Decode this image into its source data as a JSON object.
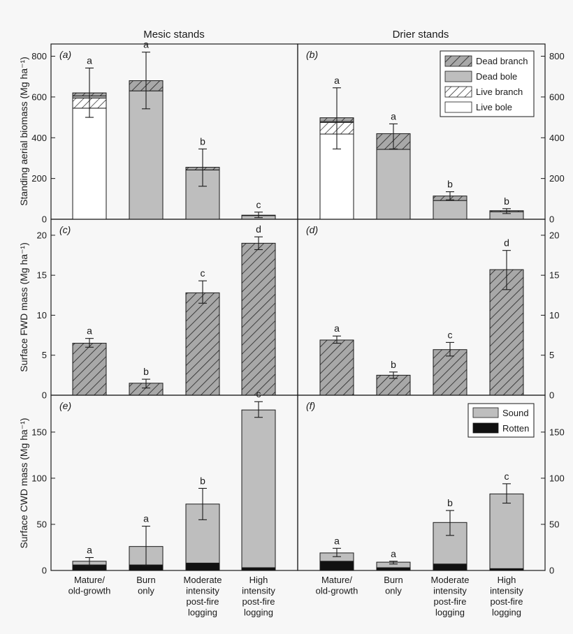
{
  "column_titles": [
    "Mesic stands",
    "Drier stands"
  ],
  "row_ylabels": [
    "Standing aerial biomass (Mg ha⁻¹)",
    "Surface FWD mass (Mg ha⁻¹)",
    "Surface CWD mass (Mg ha⁻¹)"
  ],
  "categories": [
    "Mature/\nold-growth",
    "Burn\nonly",
    "Moderate\nintensity\npost-fire\nlogging",
    "High\nintensity\npost-fire\nlogging"
  ],
  "colors": {
    "background": "#f7f7f7",
    "grey_fill": "#bebebe",
    "hatch_fill": "#a8a8a8",
    "black_fill": "#111111",
    "white_fill": "#ffffff",
    "ink": "#1a1a1a"
  },
  "legend_a": [
    "Dead branch",
    "Dead bole",
    "Live branch",
    "Live bole"
  ],
  "legend_e": [
    "Sound",
    "Rotten"
  ],
  "chart_data": [
    {
      "panel": "(a)",
      "type": "bar",
      "stacked": true,
      "column": "Mesic stands",
      "ylabel": "Standing aerial biomass (Mg ha⁻¹)",
      "ylim": [
        0,
        860
      ],
      "yticks": [
        0,
        200,
        400,
        600,
        800
      ],
      "categories": [
        "Mature/old-growth",
        "Burn only",
        "Moderate intensity post-fire logging",
        "High intensity post-fire logging"
      ],
      "series": [
        {
          "name": "Live bole",
          "values": [
            545,
            0,
            0,
            0
          ]
        },
        {
          "name": "Live branch",
          "values": [
            50,
            0,
            0,
            0
          ]
        },
        {
          "name": "Dead bole",
          "values": [
            10,
            630,
            242,
            18
          ]
        },
        {
          "name": "Dead branch",
          "values": [
            15,
            50,
            13,
            2
          ]
        }
      ],
      "error": [
        [
          500,
          742
        ],
        [
          542,
          820
        ],
        [
          162,
          345
        ],
        [
          8,
          35
        ]
      ],
      "letters": [
        "a",
        "a",
        "b",
        "c"
      ],
      "legend": "top-right",
      "legend_entries": [
        "Dead branch",
        "Dead bole",
        "Live branch",
        "Live bole"
      ]
    },
    {
      "panel": "(b)",
      "type": "bar",
      "stacked": true,
      "column": "Drier stands",
      "ylabel": "",
      "ylim": [
        0,
        860
      ],
      "yticks": [
        0,
        200,
        400,
        600,
        800
      ],
      "categories": [
        "Mature/old-growth",
        "Burn only",
        "Moderate intensity post-fire logging",
        "High intensity post-fire logging"
      ],
      "series": [
        {
          "name": "Live bole",
          "values": [
            418,
            0,
            0,
            0
          ]
        },
        {
          "name": "Live branch",
          "values": [
            57,
            0,
            0,
            0
          ]
        },
        {
          "name": "Dead bole",
          "values": [
            5,
            343,
            92,
            37
          ]
        },
        {
          "name": "Dead branch",
          "values": [
            18,
            77,
            22,
            5
          ]
        }
      ],
      "error": [
        [
          345,
          645
        ],
        [
          345,
          468
        ],
        [
          95,
          135
        ],
        [
          28,
          52
        ]
      ],
      "letters": [
        "a",
        "a",
        "b",
        "b"
      ]
    },
    {
      "panel": "(c)",
      "type": "bar",
      "column": "Mesic stands",
      "ylabel": "Surface FWD mass (Mg ha⁻¹)",
      "ylim": [
        0,
        22
      ],
      "yticks": [
        0,
        5,
        10,
        15,
        20
      ],
      "categories": [
        "Mature/old-growth",
        "Burn only",
        "Moderate intensity post-fire logging",
        "High intensity post-fire logging"
      ],
      "series": [
        {
          "values": [
            6.5,
            1.5,
            12.8,
            19.0
          ]
        }
      ],
      "error": [
        [
          6.0,
          7.1
        ],
        [
          0.9,
          2.0
        ],
        [
          11.5,
          14.3
        ],
        [
          18.2,
          19.8
        ]
      ],
      "letters": [
        "a",
        "b",
        "c",
        "d"
      ]
    },
    {
      "panel": "(d)",
      "type": "bar",
      "column": "Drier stands",
      "ylabel": "",
      "ylim": [
        0,
        22
      ],
      "yticks": [
        0,
        5,
        10,
        15,
        20
      ],
      "categories": [
        "Mature/old-growth",
        "Burn only",
        "Moderate intensity post-fire logging",
        "High intensity post-fire logging"
      ],
      "series": [
        {
          "values": [
            6.9,
            2.5,
            5.7,
            15.7
          ]
        }
      ],
      "error": [
        [
          6.5,
          7.4
        ],
        [
          2.1,
          2.9
        ],
        [
          4.9,
          6.6
        ],
        [
          13.2,
          18.1
        ]
      ],
      "letters": [
        "a",
        "b",
        "c",
        "d"
      ]
    },
    {
      "panel": "(e)",
      "type": "bar",
      "stacked": true,
      "column": "Mesic stands",
      "ylabel": "Surface CWD mass (Mg ha⁻¹)",
      "ylim": [
        0,
        190
      ],
      "yticks": [
        0,
        50,
        100,
        150
      ],
      "categories": [
        "Mature/old-growth",
        "Burn only",
        "Moderate intensity post-fire logging",
        "High intensity post-fire logging"
      ],
      "series": [
        {
          "name": "Rotten",
          "values": [
            6,
            6,
            8,
            3
          ]
        },
        {
          "name": "Sound",
          "values": [
            4,
            20,
            64,
            171
          ]
        }
      ],
      "error": [
        [
          5,
          14
        ],
        [
          5,
          48
        ],
        [
          55,
          89
        ],
        [
          166,
          183
        ]
      ],
      "letters": [
        "a",
        "a",
        "b",
        "c"
      ],
      "legend": "top-right",
      "legend_entries": [
        "Sound",
        "Rotten"
      ]
    },
    {
      "panel": "(f)",
      "type": "bar",
      "stacked": true,
      "column": "Drier stands",
      "ylabel": "",
      "ylim": [
        0,
        190
      ],
      "yticks": [
        0,
        50,
        100,
        150
      ],
      "categories": [
        "Mature/old-growth",
        "Burn only",
        "Moderate intensity post-fire logging",
        "High intensity post-fire logging"
      ],
      "series": [
        {
          "name": "Rotten",
          "values": [
            10,
            3,
            7,
            2
          ]
        },
        {
          "name": "Sound",
          "values": [
            9,
            6,
            45,
            81
          ]
        }
      ],
      "error": [
        [
          15,
          24
        ],
        [
          7,
          10
        ],
        [
          38,
          65
        ],
        [
          73,
          94
        ]
      ],
      "letters": [
        "a",
        "a",
        "b",
        "c"
      ]
    }
  ]
}
